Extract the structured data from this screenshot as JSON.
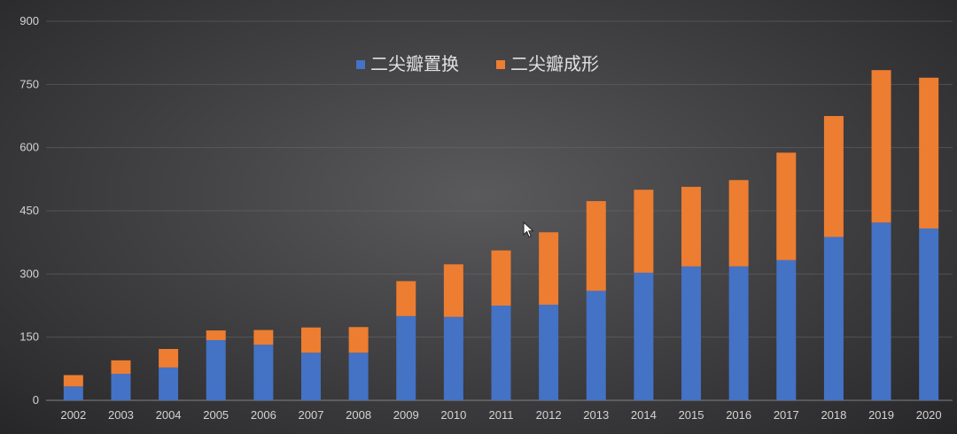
{
  "chart_data": {
    "type": "bar",
    "stacked": true,
    "categories": [
      "2002",
      "2003",
      "2004",
      "2005",
      "2006",
      "2007",
      "2008",
      "2009",
      "2010",
      "2011",
      "2012",
      "2013",
      "2014",
      "2015",
      "2016",
      "2017",
      "2018",
      "2019",
      "2020"
    ],
    "series": [
      {
        "name": "二尖瓣置换",
        "color": "#4472c4",
        "values": [
          33,
          63,
          78,
          143,
          132,
          113,
          113,
          200,
          198,
          225,
          227,
          260,
          303,
          318,
          318,
          333,
          388,
          422,
          408
        ]
      },
      {
        "name": "二尖瓣成形",
        "color": "#ed7d31",
        "values": [
          27,
          32,
          44,
          23,
          35,
          60,
          61,
          83,
          125,
          131,
          172,
          213,
          197,
          189,
          205,
          255,
          287,
          362,
          358
        ]
      }
    ],
    "ylim": [
      0,
      900
    ],
    "yticks": [
      0,
      150,
      300,
      450,
      600,
      750,
      900
    ],
    "grid": true,
    "legend_position": "top-center",
    "title": "",
    "xlabel": "",
    "ylabel": ""
  }
}
